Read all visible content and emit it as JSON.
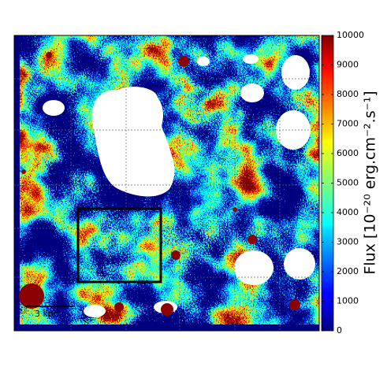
{
  "chart_data": {
    "type": "image-map",
    "colorbar_label": "Flux [10⁻²⁰ erg.cm⁻².s⁻¹]",
    "colorbar_lim": [
      0,
      10000
    ],
    "colorbar_ticks": [
      0,
      1000,
      2000,
      3000,
      4000,
      5000,
      6000,
      7000,
      8000,
      9000,
      10000
    ],
    "colormap": "jet",
    "scale_bar": "3 kpc"
  }
}
